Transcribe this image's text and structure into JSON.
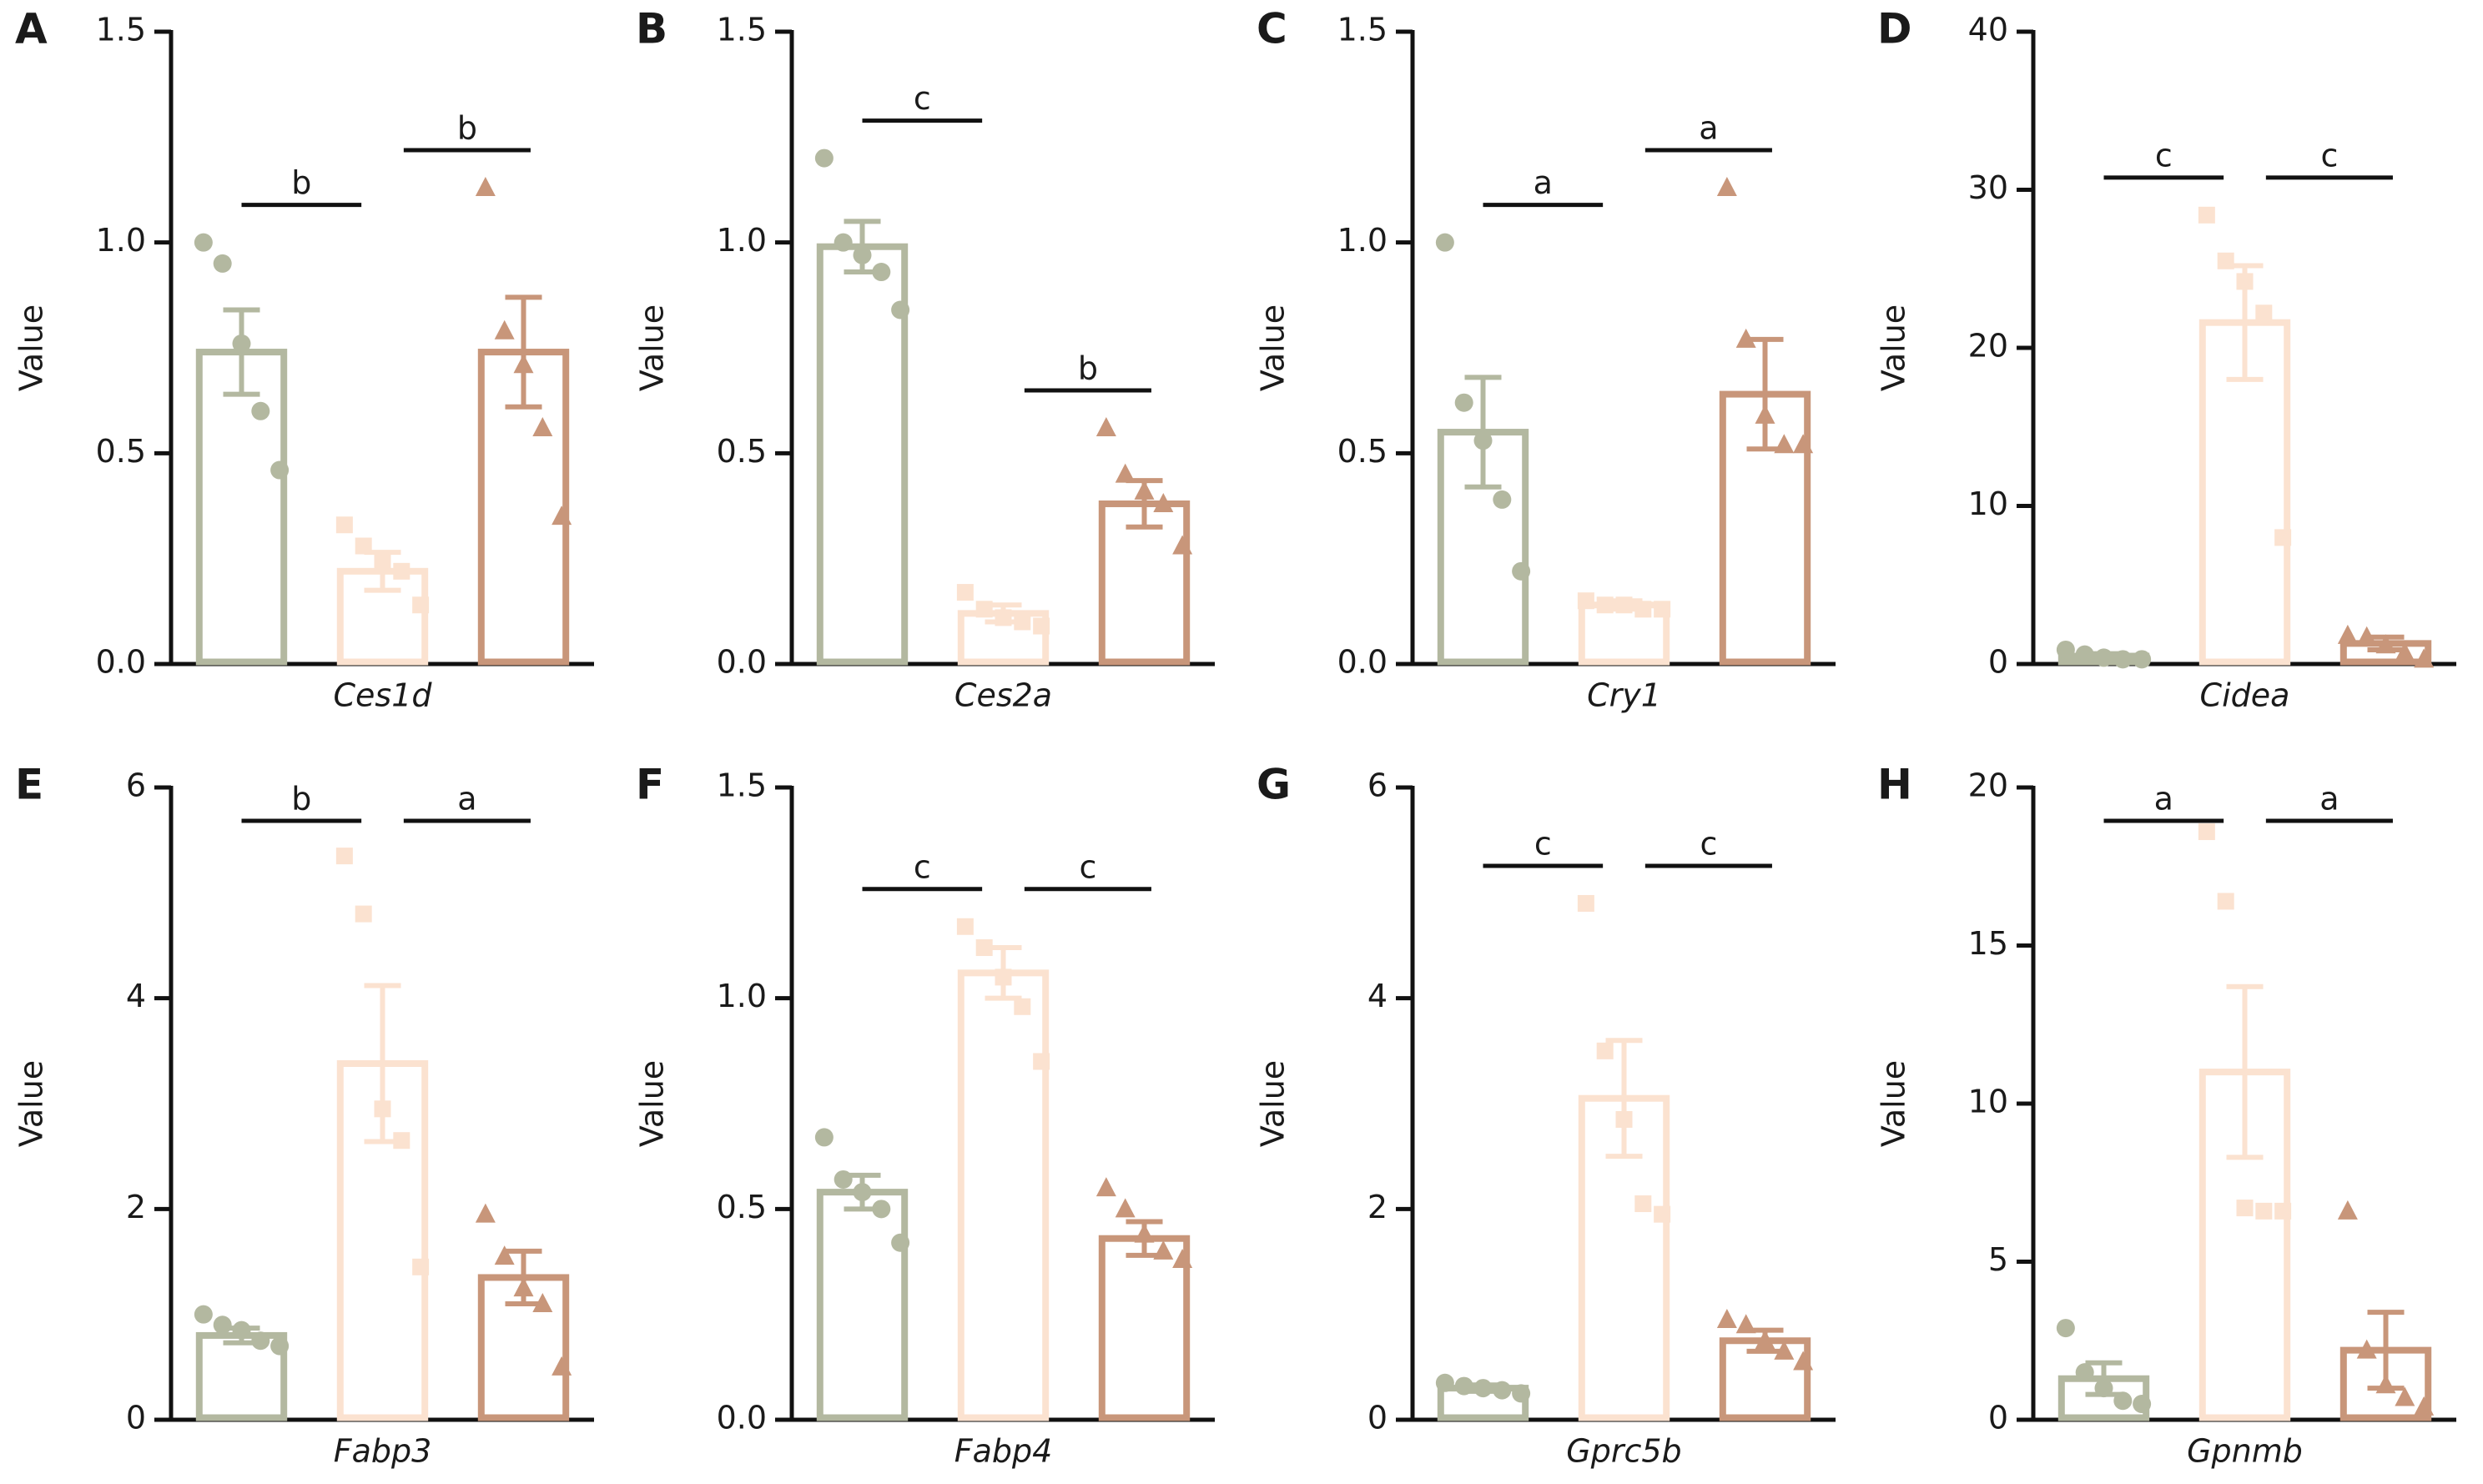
{
  "chart_data": [
    {
      "type": "bar",
      "panel": "A",
      "xlabel": "Ces1d",
      "ylabel": "Value",
      "ylim": [
        0,
        1.5
      ],
      "yticks": [
        {
          "value": 0,
          "label": "0.0"
        },
        0.5,
        {
          "value": 1,
          "label": "1.0"
        },
        1.5
      ],
      "colors": [
        "#b3b8a0",
        "#fbe2d0",
        "#c8967a"
      ],
      "markers": [
        "circle",
        "square",
        "triangle"
      ],
      "values": [
        0.74,
        0.22,
        0.74
      ],
      "errors": [
        0.1,
        0.045,
        0.13
      ],
      "points": [
        [
          1.0,
          0.95,
          0.76,
          0.6,
          0.46
        ],
        [
          0.33,
          0.28,
          0.24,
          0.22,
          0.14
        ],
        [
          1.13,
          0.79,
          0.71,
          0.56,
          0.35
        ]
      ],
      "significance": [
        "b",
        "b"
      ]
    },
    {
      "type": "bar",
      "panel": "B",
      "xlabel": "Ces2a",
      "ylabel": "Value",
      "ylim": [
        0,
        1.5
      ],
      "yticks": [
        {
          "value": 0,
          "label": "0.0"
        },
        0.5,
        {
          "value": 1,
          "label": "1.0"
        },
        1.5
      ],
      "colors": [
        "#b3b8a0",
        "#fbe2d0",
        "#c8967a"
      ],
      "markers": [
        "circle",
        "square",
        "triangle"
      ],
      "values": [
        0.99,
        0.12,
        0.38
      ],
      "errors": [
        0.06,
        0.02,
        0.055
      ],
      "points": [
        [
          1.2,
          1.0,
          0.97,
          0.93,
          0.84
        ],
        [
          0.17,
          0.13,
          0.11,
          0.1,
          0.09
        ],
        [
          0.56,
          0.45,
          0.41,
          0.38,
          0.28
        ]
      ],
      "significance": [
        "c",
        "b"
      ]
    },
    {
      "type": "bar",
      "panel": "C",
      "xlabel": "Cry1",
      "ylabel": "Value",
      "ylim": [
        0,
        1.5
      ],
      "yticks": [
        {
          "value": 0,
          "label": "0.0"
        },
        0.5,
        {
          "value": 1,
          "label": "1.0"
        },
        1.5
      ],
      "colors": [
        "#b3b8a0",
        "#fbe2d0",
        "#c8967a"
      ],
      "markers": [
        "circle",
        "square",
        "triangle"
      ],
      "values": [
        0.55,
        0.14,
        0.64
      ],
      "errors": [
        0.13,
        0.01,
        0.13
      ],
      "points": [
        [
          1.0,
          0.62,
          0.53,
          0.39,
          0.22
        ],
        [
          0.15,
          0.14,
          0.14,
          0.13,
          0.13
        ],
        [
          1.13,
          0.77,
          0.59,
          0.52,
          0.52
        ]
      ],
      "significance": [
        "a",
        "a"
      ]
    },
    {
      "type": "bar",
      "panel": "D",
      "xlabel": "Cidea",
      "ylabel": "Value",
      "ylim": [
        0,
        40
      ],
      "yticks": [
        0,
        10,
        20,
        30,
        40
      ],
      "colors": [
        "#b3b8a0",
        "#fbe2d0",
        "#c8967a"
      ],
      "markers": [
        "circle",
        "square",
        "triangle"
      ],
      "values": [
        0.5,
        21.6,
        1.3
      ],
      "errors": [
        0.15,
        3.6,
        0.4
      ],
      "points": [
        [
          0.9,
          0.6,
          0.4,
          0.3,
          0.3
        ],
        [
          28.4,
          25.5,
          24.2,
          22.2,
          8
        ],
        [
          1.8,
          1.7,
          1.2,
          0.7,
          0.3
        ]
      ],
      "significance": [
        "c",
        "c"
      ]
    },
    {
      "type": "bar",
      "panel": "E",
      "xlabel": "Fabp3",
      "ylabel": "Value",
      "ylim": [
        0,
        6
      ],
      "yticks": [
        0,
        2,
        4,
        6
      ],
      "colors": [
        "#b3b8a0",
        "#fbe2d0",
        "#c8967a"
      ],
      "markers": [
        "circle",
        "square",
        "triangle"
      ],
      "values": [
        0.8,
        3.38,
        1.35
      ],
      "errors": [
        0.07,
        0.74,
        0.25
      ],
      "points": [
        [
          1.0,
          0.9,
          0.85,
          0.75,
          0.7
        ],
        [
          5.35,
          4.8,
          2.95,
          2.65,
          1.45
        ],
        [
          1.95,
          1.55,
          1.25,
          1.1,
          0.5
        ]
      ],
      "significance": [
        "b",
        "a"
      ]
    },
    {
      "type": "bar",
      "panel": "F",
      "xlabel": "Fabp4",
      "ylabel": "Value",
      "ylim": [
        0,
        1.5
      ],
      "yticks": [
        {
          "value": 0,
          "label": "0.0"
        },
        0.5,
        {
          "value": 1,
          "label": "1.0"
        },
        1.5
      ],
      "colors": [
        "#b3b8a0",
        "#fbe2d0",
        "#c8967a"
      ],
      "markers": [
        "circle",
        "square",
        "triangle"
      ],
      "values": [
        0.54,
        1.06,
        0.43
      ],
      "errors": [
        0.04,
        0.06,
        0.04
      ],
      "points": [
        [
          0.67,
          0.57,
          0.54,
          0.5,
          0.42
        ],
        [
          1.17,
          1.12,
          1.05,
          0.98,
          0.85
        ],
        [
          0.55,
          0.5,
          0.44,
          0.4,
          0.38
        ]
      ],
      "significance": [
        "c",
        "c"
      ]
    },
    {
      "type": "bar",
      "panel": "G",
      "xlabel": "Gprc5b",
      "ylabel": "Value",
      "ylim": [
        0,
        6
      ],
      "yticks": [
        0,
        2,
        4,
        6
      ],
      "colors": [
        "#b3b8a0",
        "#fbe2d0",
        "#c8967a"
      ],
      "markers": [
        "circle",
        "square",
        "triangle"
      ],
      "values": [
        0.3,
        3.05,
        0.75
      ],
      "errors": [
        0.03,
        0.55,
        0.1
      ],
      "points": [
        [
          0.35,
          0.32,
          0.3,
          0.28,
          0.25
        ],
        [
          4.9,
          3.5,
          2.85,
          2.05,
          1.95
        ],
        [
          0.95,
          0.9,
          0.75,
          0.65,
          0.55
        ]
      ],
      "significance": [
        "c",
        "c"
      ]
    },
    {
      "type": "bar",
      "panel": "H",
      "xlabel": "Gpnmb",
      "ylabel": "Value",
      "ylim": [
        0,
        20
      ],
      "yticks": [
        0,
        5,
        10,
        15,
        20
      ],
      "colors": [
        "#b3b8a0",
        "#fbe2d0",
        "#c8967a"
      ],
      "markers": [
        "circle",
        "square",
        "triangle"
      ],
      "values": [
        1.3,
        11.0,
        2.2
      ],
      "errors": [
        0.5,
        2.7,
        1.2
      ],
      "points": [
        [
          2.9,
          1.5,
          1.0,
          0.6,
          0.5
        ],
        [
          18.6,
          16.4,
          6.7,
          6.6,
          6.6
        ],
        [
          6.6,
          2.2,
          1.1,
          0.7,
          0.4
        ]
      ],
      "significance": [
        "a",
        "a"
      ]
    }
  ]
}
